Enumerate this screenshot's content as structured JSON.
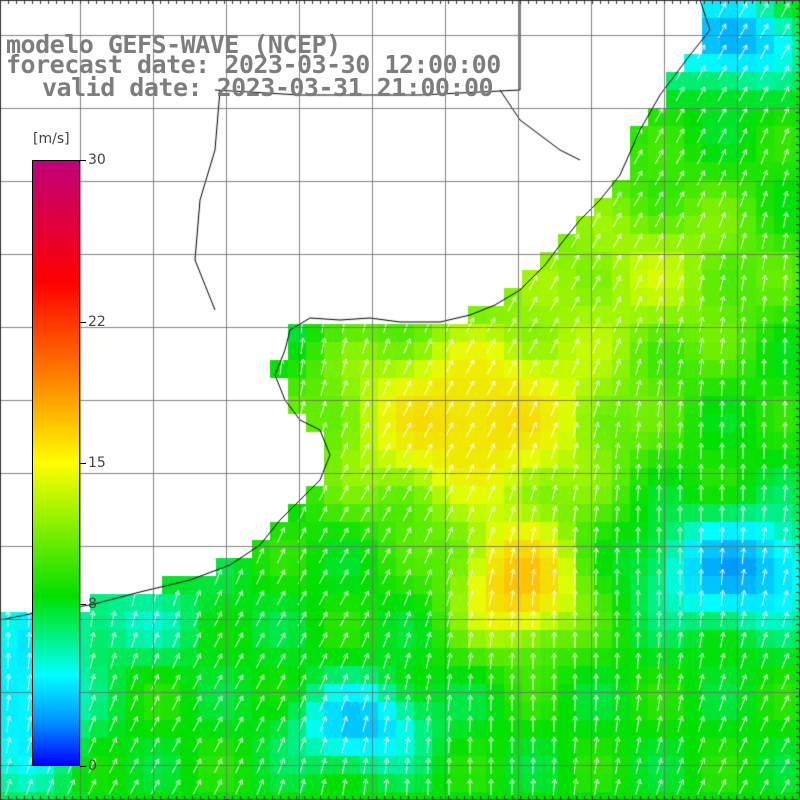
{
  "title": {
    "line1": "modelo GEFS-WAVE (NCEP)",
    "line2": "forecast date: 2023-03-30 12:00:00",
    "line3": "valid date: 2023-03-31 21:00:00"
  },
  "colorbar": {
    "unit": "[m/s]",
    "labels": [
      "30",
      "22",
      "15",
      "8",
      "0"
    ],
    "values": [
      30,
      22,
      15,
      8,
      0
    ],
    "range": [
      0,
      30
    ]
  },
  "map": {
    "field": "wind speed with direction arrows",
    "predominant_arrow_direction": "north / north-north-east",
    "max_region": "orange/yellow core offshore, ~20 m/s",
    "colors": {
      "land": "#ffffff",
      "low": "#0000ff",
      "mid": "#00ff00",
      "high": "#ff8c00",
      "arrows": "#ffffff",
      "grid": "#7a7a7a",
      "title": "#7d7d7d"
    }
  }
}
